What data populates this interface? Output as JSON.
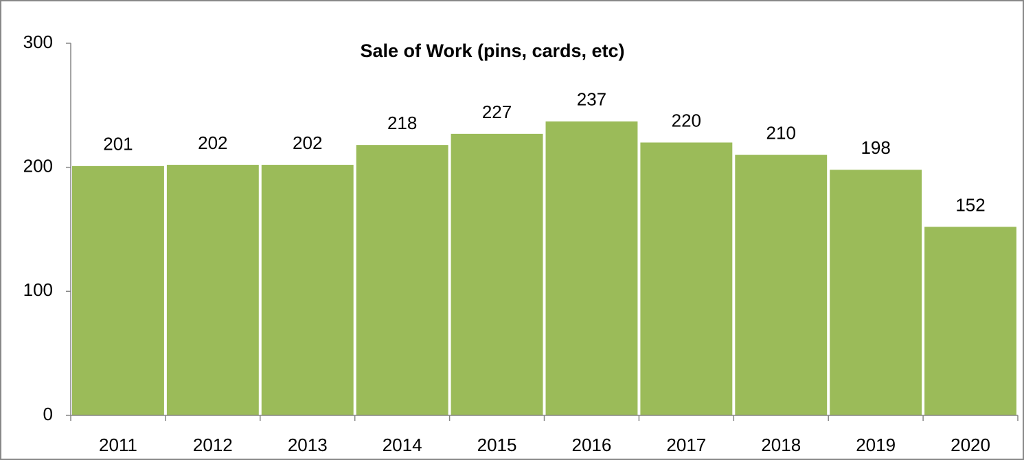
{
  "chart_data": {
    "type": "bar",
    "title": "Sale of Work (pins, cards, etc)",
    "categories": [
      "2011",
      "2012",
      "2013",
      "2014",
      "2015",
      "2016",
      "2017",
      "2018",
      "2019",
      "2020"
    ],
    "values": [
      201,
      202,
      202,
      218,
      227,
      237,
      220,
      210,
      198,
      152
    ],
    "color": "#9bbb59",
    "ylim": [
      0,
      300
    ],
    "yticks": [
      0,
      100,
      200,
      300
    ],
    "grid": false
  }
}
